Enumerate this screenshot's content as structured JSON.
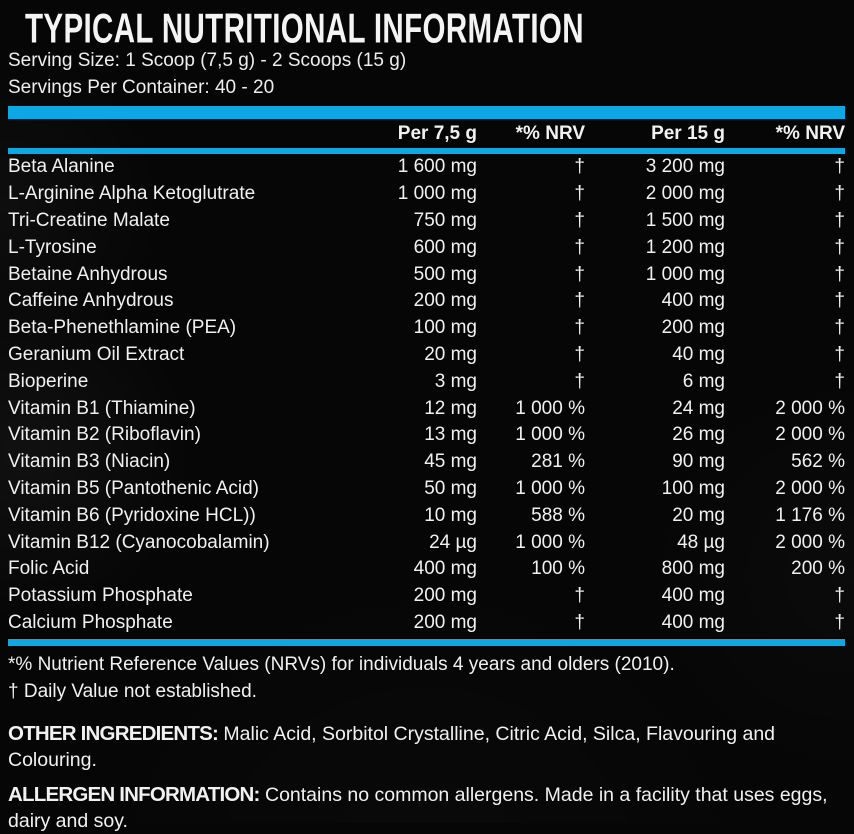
{
  "colors": {
    "accent_blue": "#0DA8E3",
    "background": "#060606",
    "text": "#F1F1F1"
  },
  "header": {
    "title": "TYPICAL NUTRITIONAL INFORMATION",
    "serving_size": "Serving Size: 1 Scoop (7,5 g) - 2 Scoops (15 g)",
    "servings_per_container": "Servings Per Container: 40 - 20"
  },
  "table": {
    "headers": [
      "Per 7,5 g",
      "*% NRV",
      "Per 15 g",
      "*% NRV"
    ],
    "rows": [
      {
        "name": "Beta Alanine",
        "per_small": "1 600 mg",
        "nrv_small": "†",
        "per_large": "3 200 mg",
        "nrv_large": "†"
      },
      {
        "name": "L-Arginine Alpha Ketoglutrate",
        "per_small": "1 000 mg",
        "nrv_small": "†",
        "per_large": "2 000 mg",
        "nrv_large": "†"
      },
      {
        "name": "Tri-Creatine Malate",
        "per_small": "750 mg",
        "nrv_small": "†",
        "per_large": "1 500 mg",
        "nrv_large": "†"
      },
      {
        "name": "L-Tyrosine",
        "per_small": "600 mg",
        "nrv_small": "†",
        "per_large": "1 200 mg",
        "nrv_large": "†"
      },
      {
        "name": "Betaine Anhydrous",
        "per_small": "500 mg",
        "nrv_small": "†",
        "per_large": "1 000 mg",
        "nrv_large": "†"
      },
      {
        "name": "Caffeine Anhydrous",
        "per_small": "200 mg",
        "nrv_small": "†",
        "per_large": "400 mg",
        "nrv_large": "†"
      },
      {
        "name": "Beta-Phenethlamine (PEA)",
        "per_small": "100 mg",
        "nrv_small": "†",
        "per_large": "200 mg",
        "nrv_large": "†"
      },
      {
        "name": "Geranium Oil Extract",
        "per_small": "20 mg",
        "nrv_small": "†",
        "per_large": "40 mg",
        "nrv_large": "†"
      },
      {
        "name": "Bioperine",
        "per_small": "3 mg",
        "nrv_small": "†",
        "per_large": "6 mg",
        "nrv_large": "†"
      },
      {
        "name": "Vitamin B1 (Thiamine)",
        "per_small": "12 mg",
        "nrv_small": "1 000 %",
        "per_large": "24 mg",
        "nrv_large": "2 000 %"
      },
      {
        "name": "Vitamin B2 (Riboflavin)",
        "per_small": "13 mg",
        "nrv_small": "1 000 %",
        "per_large": "26 mg",
        "nrv_large": "2 000 %"
      },
      {
        "name": "Vitamin B3 (Niacin)",
        "per_small": "45 mg",
        "nrv_small": "281 %",
        "per_large": "90 mg",
        "nrv_large": "562 %"
      },
      {
        "name": "Vitamin B5 (Pantothenic Acid)",
        "per_small": "50 mg",
        "nrv_small": "1 000 %",
        "per_large": "100 mg",
        "nrv_large": "2 000 %"
      },
      {
        "name": "Vitamin B6 (Pyridoxine HCL))",
        "per_small": "10 mg",
        "nrv_small": "588 %",
        "per_large": "20 mg",
        "nrv_large": "1 176 %"
      },
      {
        "name": "Vitamin B12 (Cyanocobalamin)",
        "per_small": "24 µg",
        "nrv_small": "1 000 %",
        "per_large": "48 µg",
        "nrv_large": "2 000 %"
      },
      {
        "name": "Folic Acid",
        "per_small": "400 mg",
        "nrv_small": "100 %",
        "per_large": "800 mg",
        "nrv_large": "200 %"
      },
      {
        "name": "Potassium Phosphate",
        "per_small": "200 mg",
        "nrv_small": "†",
        "per_large": "400 mg",
        "nrv_large": "†"
      },
      {
        "name": "Calcium Phosphate",
        "per_small": "200 mg",
        "nrv_small": "†",
        "per_large": "400 mg",
        "nrv_large": "†"
      }
    ]
  },
  "footnotes": {
    "nrv_note": "*% Nutrient Reference Values (NRVs) for individuals 4 years and olders (2010).",
    "dagger_note": "† Daily Value not established."
  },
  "other_ingredients": {
    "label": "OTHER INGREDIENTS:",
    "text": " Malic Acid, Sorbitol Crystalline, Citric Acid, Silca, Flavouring and Colouring."
  },
  "allergen_information": {
    "label": "ALLERGEN INFORMATION:",
    "text": " Contains no common allergens. Made in a facility that uses eggs, dairy and soy."
  }
}
